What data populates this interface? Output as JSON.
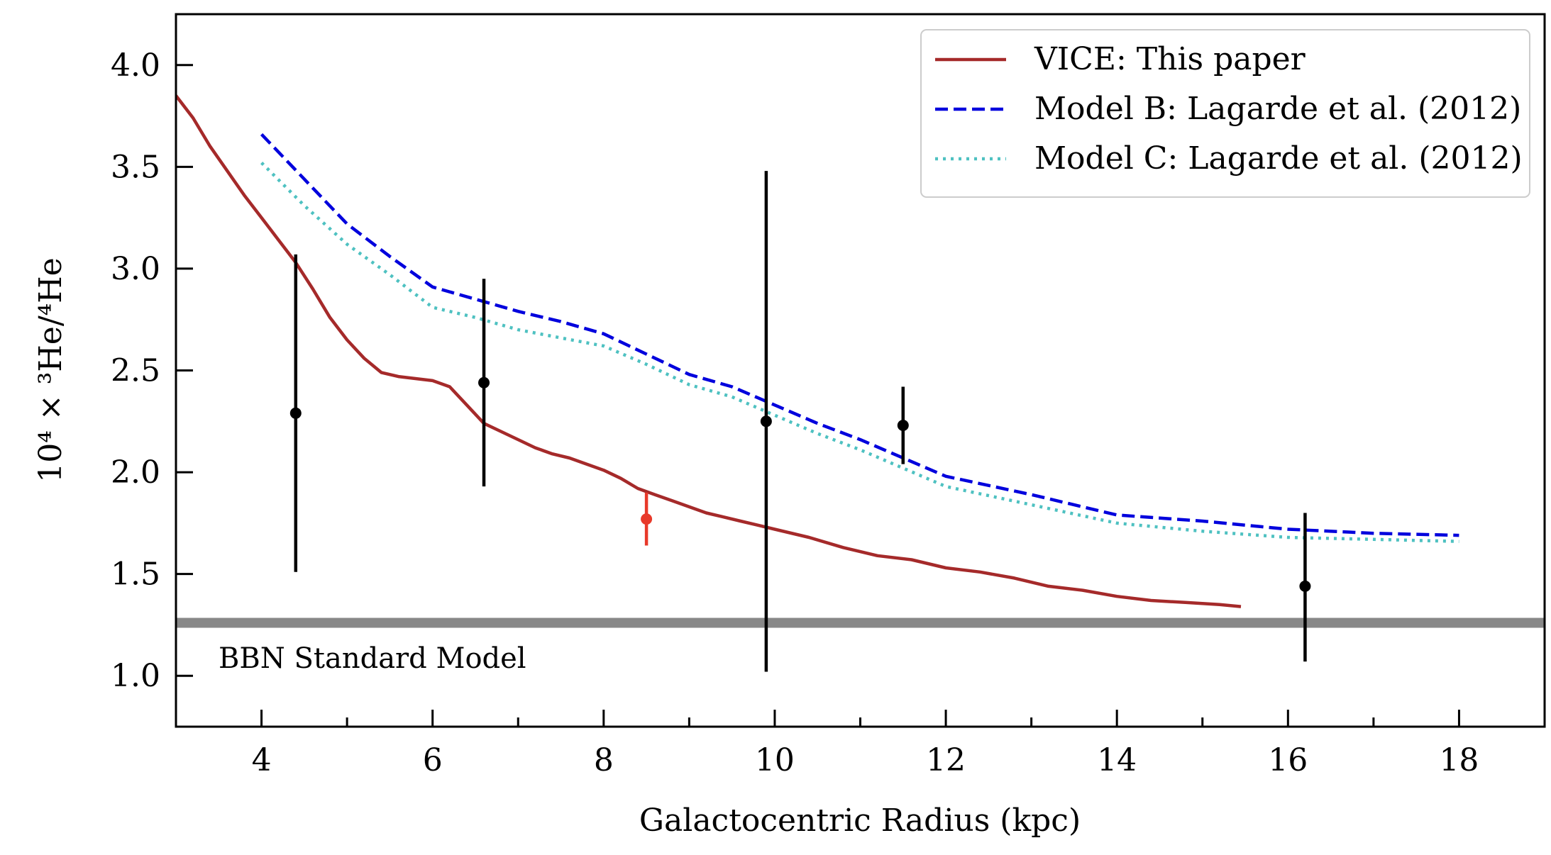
{
  "chart_data": {
    "type": "line",
    "xlabel": "Galactocentric Radius (kpc)",
    "ylabel": "10⁴ × ³He/⁴He",
    "xlim": [
      3,
      19
    ],
    "ylim": [
      0.75,
      4.25
    ],
    "x_ticks": [
      4,
      6,
      8,
      10,
      12,
      14,
      16,
      18
    ],
    "x_tick_labels": [
      "4",
      "6",
      "8",
      "10",
      "12",
      "14",
      "16",
      "18"
    ],
    "y_ticks": [
      1.0,
      1.5,
      2.0,
      2.5,
      3.0,
      3.5,
      4.0
    ],
    "y_tick_labels": [
      "1.0",
      "1.5",
      "2.0",
      "2.5",
      "3.0",
      "3.5",
      "4.0"
    ],
    "legend_position": "top-right",
    "grid": false,
    "series": [
      {
        "name": "VICE: This paper",
        "style": "solid",
        "color": "#A52A2A",
        "x": [
          3.0,
          3.2,
          3.4,
          3.6,
          3.8,
          4.0,
          4.2,
          4.4,
          4.6,
          4.8,
          5.0,
          5.2,
          5.4,
          5.6,
          5.8,
          6.0,
          6.2,
          6.4,
          6.6,
          6.8,
          7.0,
          7.2,
          7.4,
          7.6,
          7.8,
          8.0,
          8.2,
          8.4,
          8.6,
          8.8,
          9.0,
          9.2,
          9.4,
          9.6,
          9.8,
          10.0,
          10.4,
          10.8,
          11.2,
          11.6,
          12.0,
          12.4,
          12.8,
          13.2,
          13.6,
          14.0,
          14.4,
          14.8,
          15.2,
          15.45
        ],
        "y": [
          3.85,
          3.74,
          3.6,
          3.48,
          3.36,
          3.25,
          3.14,
          3.03,
          2.9,
          2.76,
          2.65,
          2.56,
          2.49,
          2.47,
          2.46,
          2.45,
          2.42,
          2.33,
          2.24,
          2.2,
          2.16,
          2.12,
          2.09,
          2.07,
          2.04,
          2.01,
          1.97,
          1.92,
          1.89,
          1.86,
          1.83,
          1.8,
          1.78,
          1.76,
          1.74,
          1.72,
          1.68,
          1.63,
          1.59,
          1.57,
          1.53,
          1.51,
          1.48,
          1.44,
          1.42,
          1.39,
          1.37,
          1.36,
          1.35,
          1.34
        ]
      },
      {
        "name": "Model B: Lagarde et al. (2012)",
        "style": "dashed",
        "color": "#0000DD",
        "x": [
          4.0,
          4.5,
          5.0,
          5.5,
          6.0,
          6.5,
          7.0,
          7.5,
          8.0,
          8.5,
          9.0,
          9.5,
          10.0,
          10.5,
          11.0,
          11.5,
          12.0,
          13.0,
          14.0,
          15.0,
          16.0,
          17.0,
          18.0
        ],
        "y": [
          3.66,
          3.44,
          3.22,
          3.06,
          2.91,
          2.85,
          2.79,
          2.74,
          2.68,
          2.58,
          2.48,
          2.42,
          2.33,
          2.24,
          2.16,
          2.07,
          1.98,
          1.89,
          1.79,
          1.76,
          1.72,
          1.7,
          1.69
        ]
      },
      {
        "name": "Model C: Lagarde et al. (2012)",
        "style": "dotted",
        "color": "#4EC1C1",
        "x": [
          4.0,
          4.5,
          5.0,
          5.5,
          6.0,
          6.5,
          7.0,
          7.5,
          8.0,
          8.5,
          9.0,
          9.5,
          10.0,
          10.5,
          11.0,
          11.5,
          12.0,
          13.0,
          14.0,
          15.0,
          16.0,
          17.0,
          18.0
        ],
        "y": [
          3.52,
          3.31,
          3.12,
          2.97,
          2.81,
          2.76,
          2.7,
          2.66,
          2.62,
          2.53,
          2.43,
          2.37,
          2.28,
          2.19,
          2.11,
          2.02,
          1.93,
          1.84,
          1.75,
          1.71,
          1.68,
          1.67,
          1.66
        ]
      }
    ],
    "observations": [
      {
        "x": 4.4,
        "y": 2.29,
        "ylow": 1.51,
        "yhigh": 3.07,
        "color": "#000000"
      },
      {
        "x": 6.6,
        "y": 2.44,
        "ylow": 1.93,
        "yhigh": 2.95,
        "color": "#000000"
      },
      {
        "x": 8.5,
        "y": 1.77,
        "ylow": 1.64,
        "yhigh": 1.9,
        "color": "#E8392A"
      },
      {
        "x": 9.9,
        "y": 2.25,
        "ylow": 1.02,
        "yhigh": 3.48,
        "color": "#000000"
      },
      {
        "x": 11.5,
        "y": 2.23,
        "ylow": 2.04,
        "yhigh": 2.42,
        "color": "#000000"
      },
      {
        "x": 16.2,
        "y": 1.44,
        "ylow": 1.07,
        "yhigh": 1.8,
        "color": "#000000"
      }
    ],
    "reference_line": {
      "label": "BBN Standard Model",
      "y": 1.26,
      "color": "#888888"
    }
  }
}
